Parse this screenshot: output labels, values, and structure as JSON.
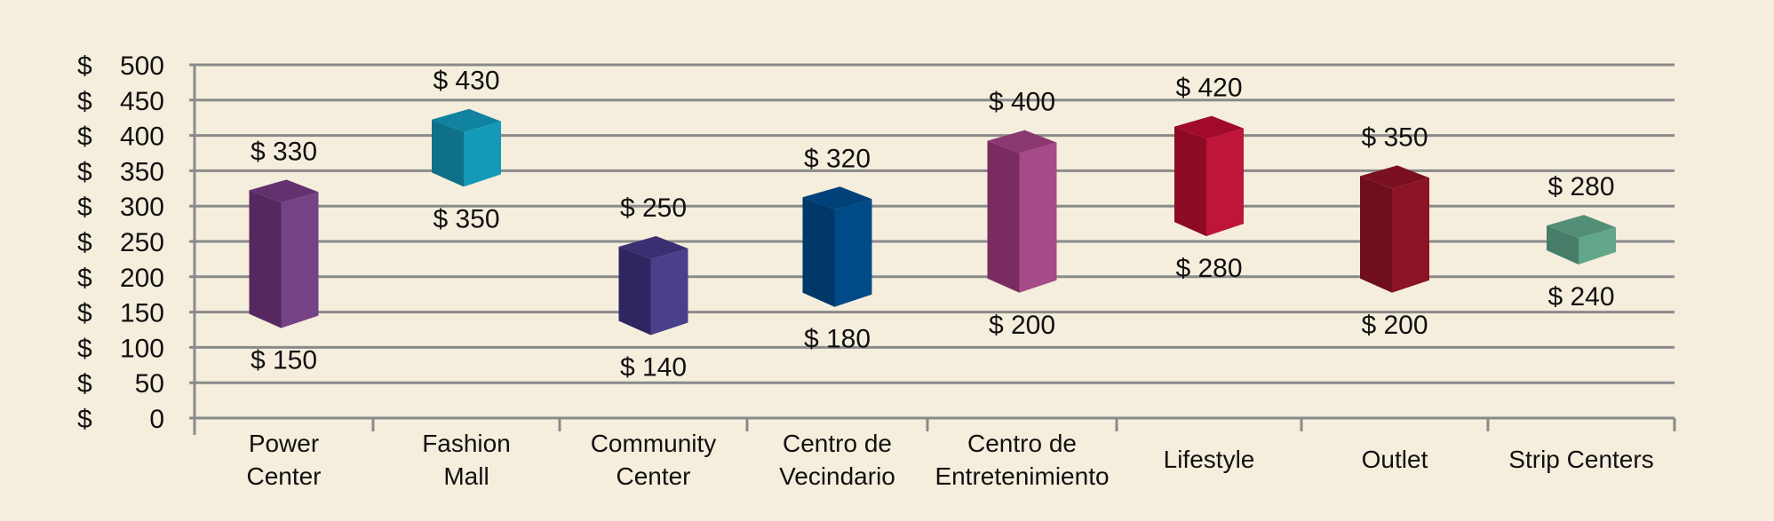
{
  "chart_data": {
    "type": "bar",
    "subtype": "floating-range-3d",
    "title": "",
    "xlabel": "",
    "ylabel": "",
    "currency": "$",
    "ylim": [
      0,
      500
    ],
    "yticks": [
      0,
      50,
      100,
      150,
      200,
      250,
      300,
      350,
      400,
      450,
      500
    ],
    "grid": true,
    "categories": [
      [
        "Power",
        "Center"
      ],
      [
        "Fashion",
        "Mall"
      ],
      [
        "Community",
        "Center"
      ],
      [
        "Centro de",
        "Vecindario"
      ],
      [
        "Centro de",
        "Entretenimiento"
      ],
      [
        "Lifestyle"
      ],
      [
        "Outlet"
      ],
      [
        "Strip Centers"
      ]
    ],
    "series": [
      {
        "name": "low",
        "values": [
          150,
          350,
          140,
          180,
          200,
          280,
          200,
          240
        ]
      },
      {
        "name": "high",
        "values": [
          330,
          430,
          250,
          320,
          400,
          420,
          350,
          280
        ]
      }
    ],
    "data_labels": {
      "low": [
        "$ 150",
        "$ 350",
        "$ 140",
        "$ 180",
        "$ 200",
        "$ 280",
        "$ 200",
        "$ 240"
      ],
      "high": [
        "$ 330",
        "$ 430",
        "$ 250",
        "$ 320",
        "$ 400",
        "$ 420",
        "$ 350",
        "$ 280"
      ]
    },
    "colors": [
      {
        "front": "#754285",
        "side": "#552860",
        "top": "#643170"
      },
      {
        "front": "#1499b8",
        "side": "#0e7189",
        "top": "#0f839f"
      },
      {
        "front": "#4a3f8a",
        "side": "#2f2560",
        "top": "#3b2f72"
      },
      {
        "front": "#004b87",
        "side": "#00386a",
        "top": "#004179"
      },
      {
        "front": "#a64b87",
        "side": "#7a2c61",
        "top": "#8b3870"
      },
      {
        "front": "#be1538",
        "side": "#8d0a25",
        "top": "#a20a2c"
      },
      {
        "front": "#8a1426",
        "side": "#6f0f1e",
        "top": "#7a101f"
      },
      {
        "front": "#62a78a",
        "side": "#477d68",
        "top": "#538f77"
      }
    ],
    "grid_color": "#8a8a8a"
  }
}
